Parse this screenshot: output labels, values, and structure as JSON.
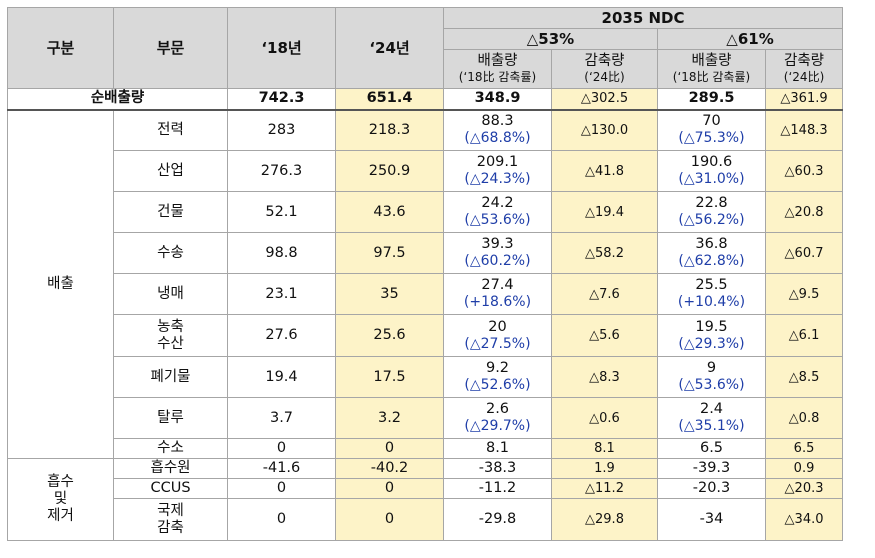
{
  "header": {
    "col_category": "구분",
    "col_sector": "부문",
    "col_2018": "‘18년",
    "col_2024": "‘24년",
    "ndc_title": "2035 NDC",
    "scenario_53": "△53%",
    "scenario_61": "△61%",
    "emission_label": "배출량",
    "emission_note": "(‘18比 감축률)",
    "reduction_label": "감축량",
    "reduction_note": "(‘24比)"
  },
  "total": {
    "label": "순배출량",
    "y2018": "742.3",
    "y2024": "651.4",
    "s53_emission": "348.9",
    "s53_reduction": "△302.5",
    "s61_emission": "289.5",
    "s61_reduction": "△361.9"
  },
  "group_emission": "배출",
  "group_absorb": "흡수\n및\n제거",
  "emission_rows": [
    {
      "sector": "전력",
      "y2018": "283",
      "y2024": "218.3",
      "s53_e": "88.3",
      "s53_p": "(△68.8%)",
      "s53_r": "△130.0",
      "s61_e": "70",
      "s61_p": "(△75.3%)",
      "s61_r": "△148.3"
    },
    {
      "sector": "산업",
      "y2018": "276.3",
      "y2024": "250.9",
      "s53_e": "209.1",
      "s53_p": "(△24.3%)",
      "s53_r": "△41.8",
      "s61_e": "190.6",
      "s61_p": "(△31.0%)",
      "s61_r": "△60.3"
    },
    {
      "sector": "건물",
      "y2018": "52.1",
      "y2024": "43.6",
      "s53_e": "24.2",
      "s53_p": "(△53.6%)",
      "s53_r": "△19.4",
      "s61_e": "22.8",
      "s61_p": "(△56.2%)",
      "s61_r": "△20.8"
    },
    {
      "sector": "수송",
      "y2018": "98.8",
      "y2024": "97.5",
      "s53_e": "39.3",
      "s53_p": "(△60.2%)",
      "s53_r": "△58.2",
      "s61_e": "36.8",
      "s61_p": "(△62.8%)",
      "s61_r": "△60.7"
    },
    {
      "sector": "냉매",
      "y2018": "23.1",
      "y2024": "35",
      "s53_e": "27.4",
      "s53_p": "(+18.6%)",
      "s53_r": "△7.6",
      "s61_e": "25.5",
      "s61_p": "(+10.4%)",
      "s61_r": "△9.5"
    },
    {
      "sector": "농축\n수산",
      "y2018": "27.6",
      "y2024": "25.6",
      "s53_e": "20",
      "s53_p": "(△27.5%)",
      "s53_r": "△5.6",
      "s61_e": "19.5",
      "s61_p": "(△29.3%)",
      "s61_r": "△6.1"
    },
    {
      "sector": "폐기물",
      "y2018": "19.4",
      "y2024": "17.5",
      "s53_e": "9.2",
      "s53_p": "(△52.6%)",
      "s53_r": "△8.3",
      "s61_e": "9",
      "s61_p": "(△53.6%)",
      "s61_r": "△8.5"
    },
    {
      "sector": "탈루",
      "y2018": "3.7",
      "y2024": "3.2",
      "s53_e": "2.6",
      "s53_p": "(△29.7%)",
      "s53_r": "△0.6",
      "s61_e": "2.4",
      "s61_p": "(△35.1%)",
      "s61_r": "△0.8"
    }
  ],
  "hydrogen_row": {
    "sector": "수소",
    "y2018": "0",
    "y2024": "0",
    "s53_e": "8.1",
    "s53_r": "8.1",
    "s61_e": "6.5",
    "s61_r": "6.5"
  },
  "absorb_rows": [
    {
      "sector": "흡수원",
      "y2018": "-41.6",
      "y2024": "-40.2",
      "s53_e": "-38.3",
      "s53_r": "1.9",
      "s61_e": "-39.3",
      "s61_r": "0.9"
    },
    {
      "sector": "CCUS",
      "y2018": "0",
      "y2024": "0",
      "s53_e": "-11.2",
      "s53_r": "△11.2",
      "s61_e": "-20.3",
      "s61_r": "△20.3"
    },
    {
      "sector": "국제\n감축",
      "y2018": "0",
      "y2024": "0",
      "s53_e": "-29.8",
      "s53_r": "△29.8",
      "s61_e": "-34",
      "s61_r": "△34.0"
    }
  ]
}
